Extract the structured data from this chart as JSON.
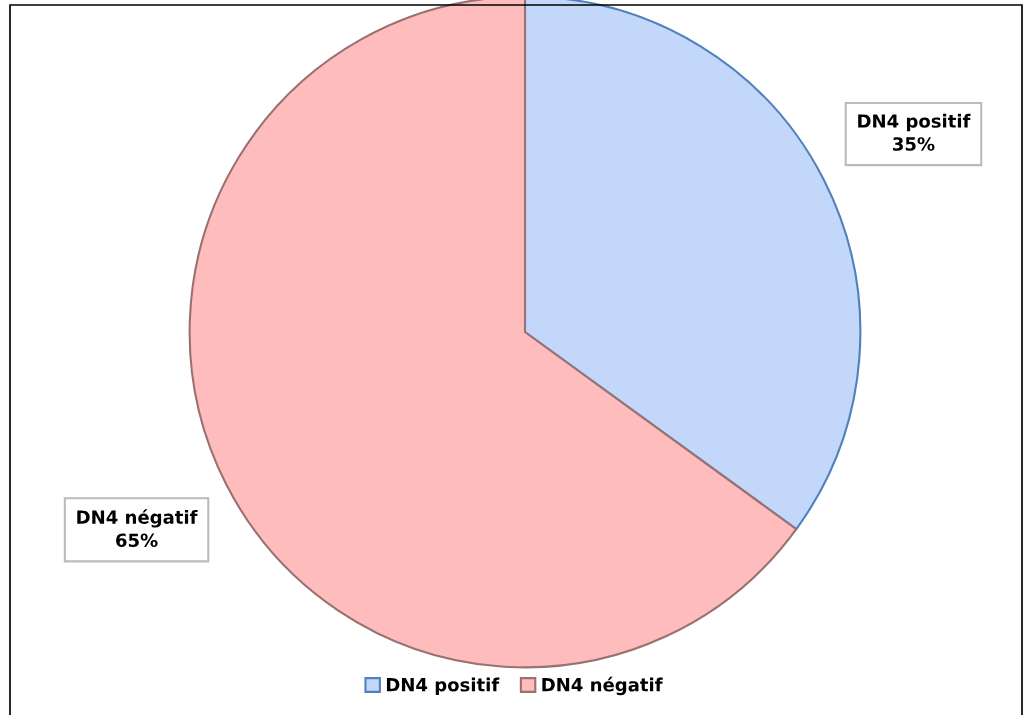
{
  "chart_data": {
    "type": "pie",
    "categories": [
      "DN4 positif",
      "DN4 négatif"
    ],
    "values": [
      35,
      65
    ],
    "colors": [
      "#c3d7fb",
      "#ffbcbc"
    ],
    "value_labels": [
      "35%",
      "65%"
    ],
    "legend": "bottom"
  }
}
